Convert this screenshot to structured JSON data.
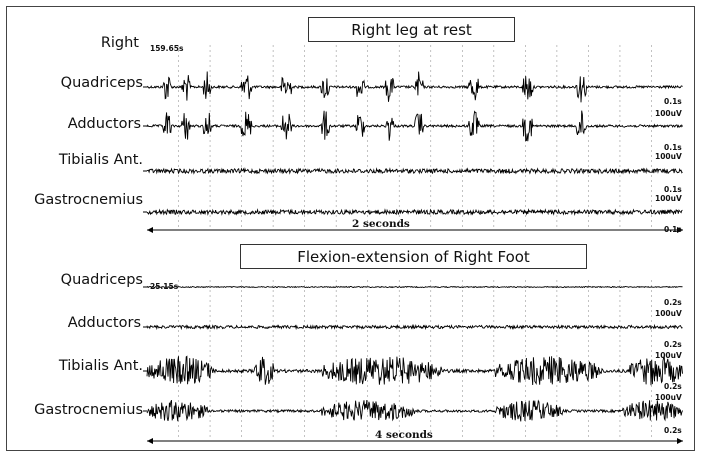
{
  "figure": {
    "panels": [
      {
        "id": "top",
        "title": "Right leg at rest",
        "row_header": "Right",
        "timestamp": "159.65s",
        "duration_label": "2 seconds",
        "channels": [
          {
            "label": "Quadriceps",
            "scale_time": "0.1s",
            "scale_amp": "100uV"
          },
          {
            "label": "Adductors",
            "scale_time": "0.1s",
            "scale_amp": "100uV"
          },
          {
            "label": "Tibialis Ant.",
            "scale_time": "0.1s",
            "scale_amp": "100uV"
          },
          {
            "label": "Gastrocnemius",
            "scale_time": "0.1s",
            "scale_amp": ""
          }
        ]
      },
      {
        "id": "bottom",
        "title": "Flexion-extension of Right Foot",
        "timestamp": "25.15s",
        "duration_label": "4 seconds",
        "channels": [
          {
            "label": "Quadriceps",
            "scale_time": "0.2s",
            "scale_amp": "100uV"
          },
          {
            "label": "Adductors",
            "scale_time": "0.2s",
            "scale_amp": "100uV"
          },
          {
            "label": "Tibialis Ant.",
            "scale_time": "0.2s",
            "scale_amp": "100uV"
          },
          {
            "label": "Gastrocnemius",
            "scale_time": "0.2s",
            "scale_amp": ""
          }
        ]
      }
    ]
  },
  "chart_data": [
    {
      "type": "line",
      "title": "Right leg at rest",
      "x_unit": "s",
      "x_range": [
        0,
        2
      ],
      "duration": "2 seconds",
      "series": [
        {
          "name": "Quadriceps",
          "bursts": [
            [
              0.06,
              0.09
            ],
            [
              0.13,
              0.16
            ],
            [
              0.21,
              0.24
            ],
            [
              0.35,
              0.39
            ],
            [
              0.5,
              0.54
            ],
            [
              0.65,
              0.68
            ],
            [
              0.78,
              0.81
            ],
            [
              0.89,
              0.92
            ],
            [
              1.0,
              1.03
            ],
            [
              1.2,
              1.24
            ],
            [
              1.4,
              1.44
            ],
            [
              1.6,
              1.64
            ]
          ]
        },
        {
          "name": "Adductors",
          "bursts": [
            [
              0.06,
              0.09
            ],
            [
              0.13,
              0.16
            ],
            [
              0.21,
              0.24
            ],
            [
              0.35,
              0.39
            ],
            [
              0.5,
              0.54
            ],
            [
              0.65,
              0.68
            ],
            [
              0.78,
              0.81
            ],
            [
              0.89,
              0.92
            ],
            [
              1.0,
              1.03
            ],
            [
              1.2,
              1.24
            ],
            [
              1.4,
              1.44
            ],
            [
              1.6,
              1.64
            ]
          ]
        },
        {
          "name": "Tibialis Ant.",
          "bursts": []
        },
        {
          "name": "Gastrocnemius",
          "bursts": []
        }
      ]
    },
    {
      "type": "line",
      "title": "Flexion-extension of Right Foot",
      "x_unit": "s",
      "x_range": [
        0,
        4
      ],
      "duration": "4 seconds",
      "series": [
        {
          "name": "Quadriceps",
          "bursts": []
        },
        {
          "name": "Adductors",
          "bursts": []
        },
        {
          "name": "Tibialis Ant.",
          "bursts": [
            [
              0.0,
              0.5
            ],
            [
              0.8,
              0.95
            ],
            [
              1.3,
              2.2
            ],
            [
              2.6,
              3.4
            ],
            [
              3.6,
              4.0
            ]
          ]
        },
        {
          "name": "Gastrocnemius",
          "bursts": [
            [
              0.0,
              0.45
            ],
            [
              1.3,
              2.0
            ],
            [
              2.6,
              3.1
            ],
            [
              3.55,
              4.0
            ]
          ]
        }
      ]
    }
  ]
}
